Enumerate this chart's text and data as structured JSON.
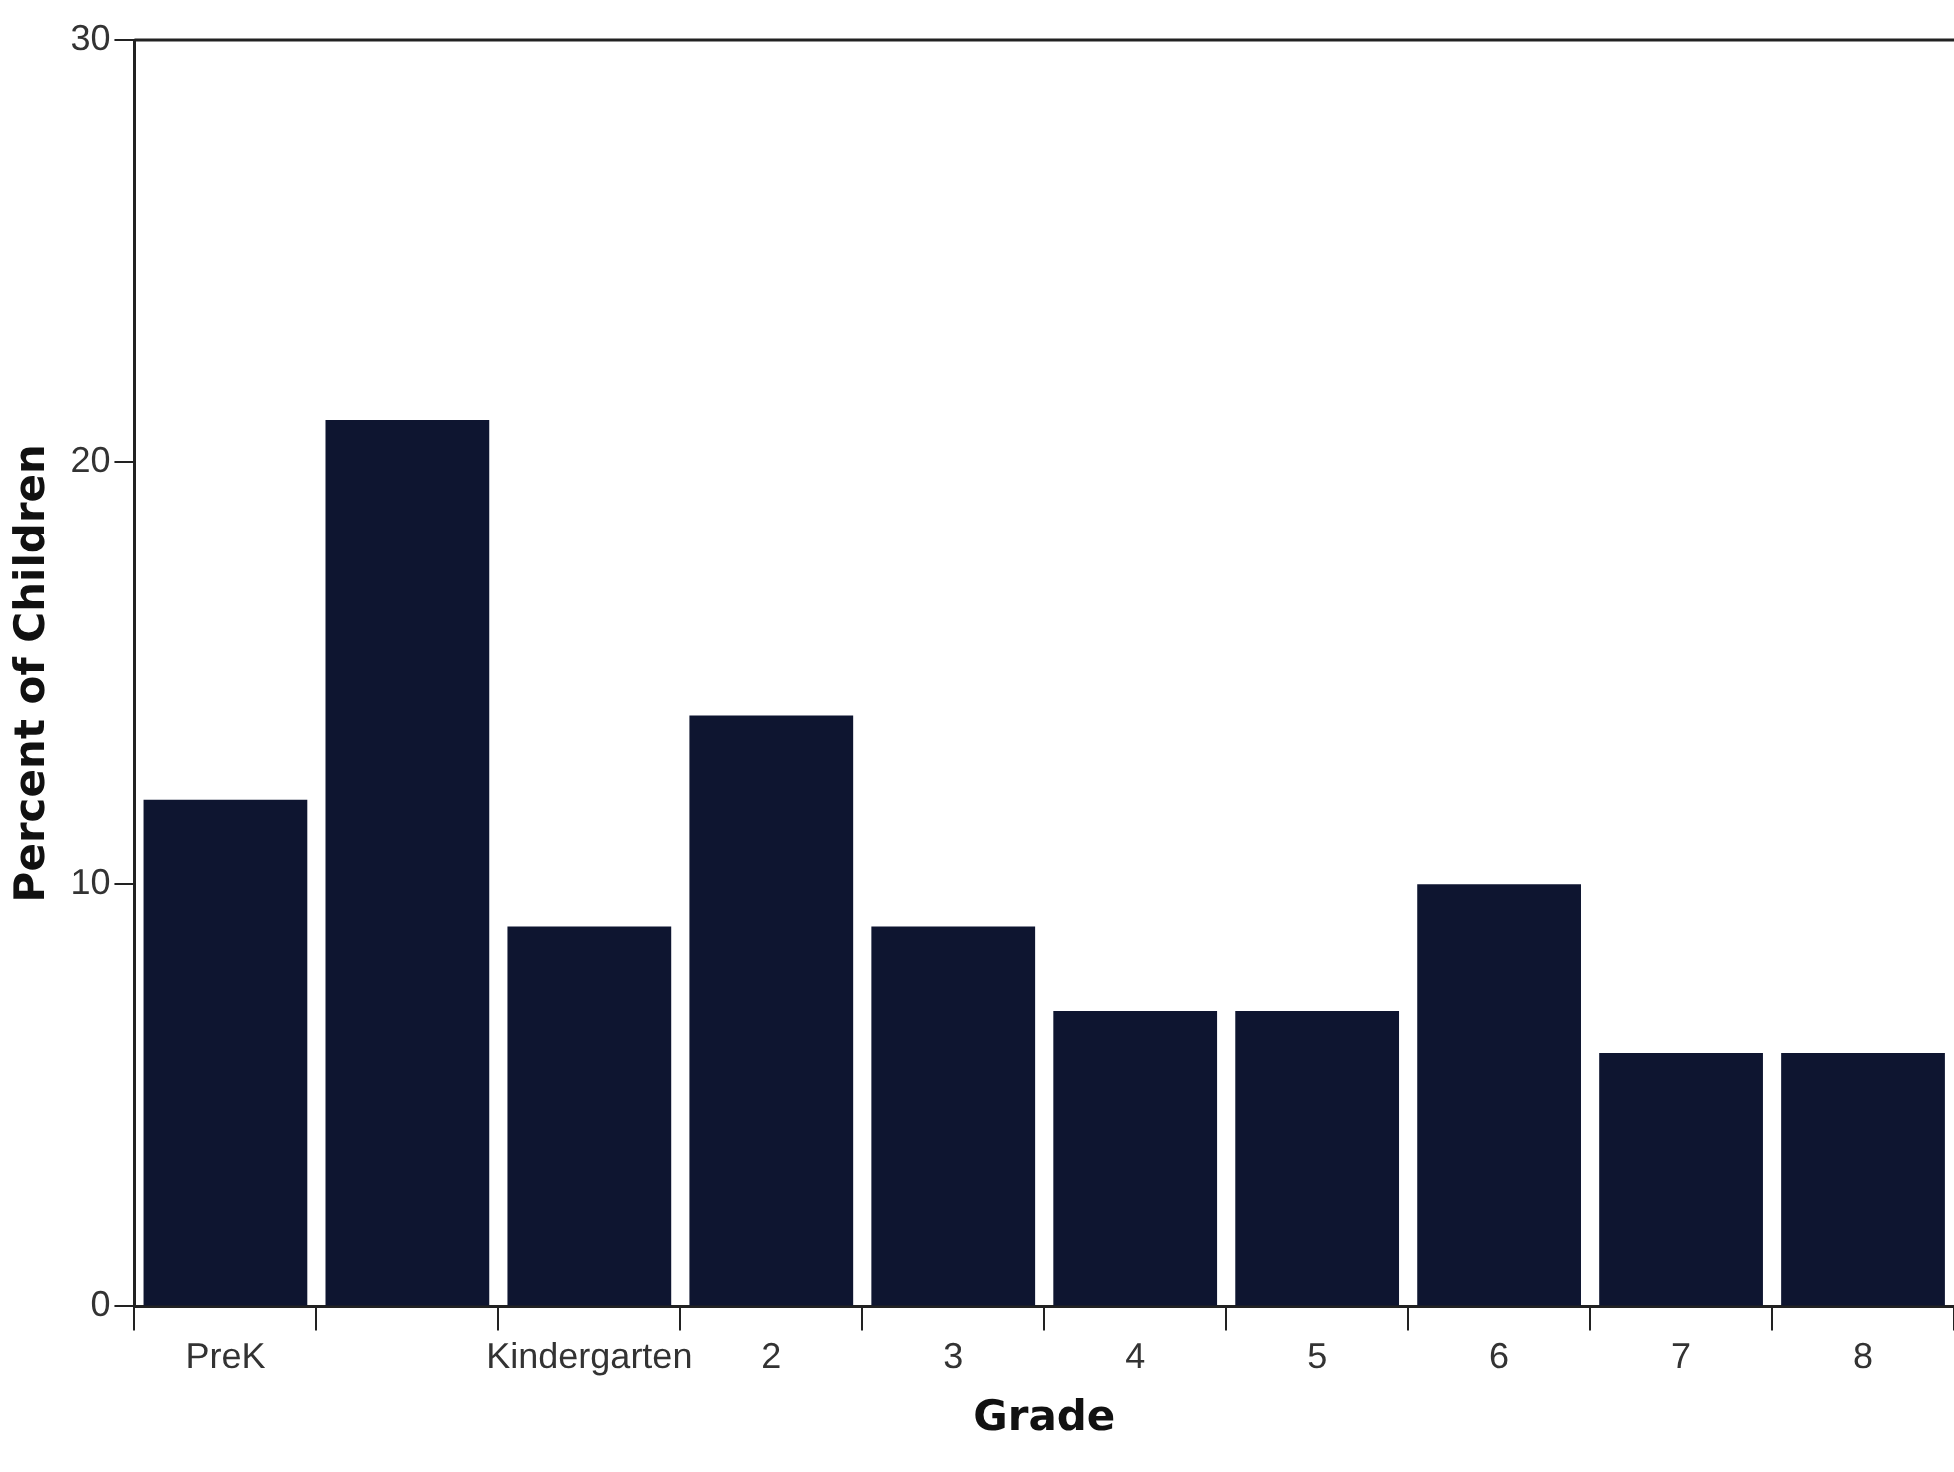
{
  "chart_data": {
    "type": "bar",
    "xlabel": "Grade",
    "ylabel": "Percent of Children",
    "categories": [
      "PreK",
      null,
      "Kindergarten",
      "2",
      "3",
      "4",
      "5",
      "6",
      "7",
      "8"
    ],
    "values": [
      12,
      21,
      9,
      14,
      9,
      7,
      7,
      10,
      6,
      6
    ],
    "color": "#0e1530",
    "ylim": [
      0,
      30
    ],
    "yticks": [
      0,
      10,
      20,
      30
    ],
    "grid": false,
    "legend": false
  }
}
